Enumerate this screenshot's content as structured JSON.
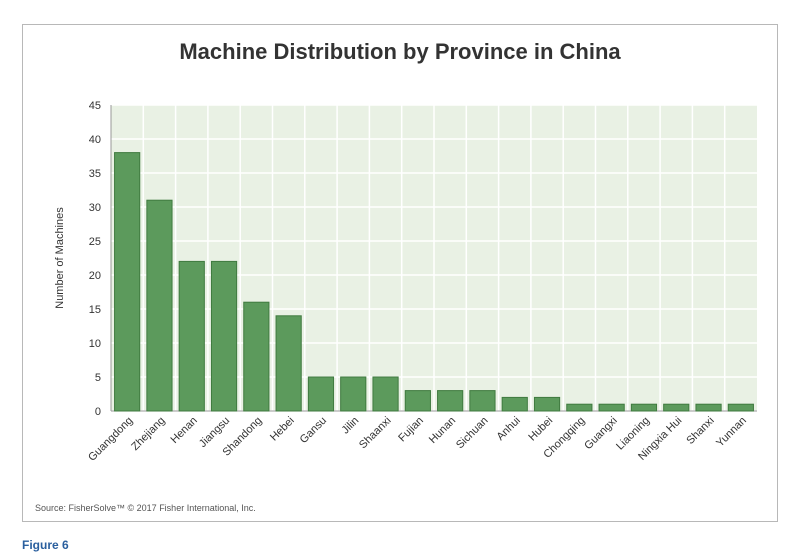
{
  "figure_label": "Figure 6",
  "source": "Source: FisherSolve™ © 2017 Fisher International, Inc.",
  "chart_data": {
    "type": "bar",
    "title": "Machine Distribution by Province in China",
    "xlabel": "",
    "ylabel": "Number of Machines",
    "ylim": [
      0,
      45
    ],
    "yticks": [
      0,
      5,
      10,
      15,
      20,
      25,
      30,
      35,
      40,
      45
    ],
    "grid": true,
    "categories": [
      "Guangdong",
      "Zhejiang",
      "Henan",
      "Jiangsu",
      "Shandong",
      "Hebei",
      "Gansu",
      "Jilin",
      "Shaanxi",
      "Fujian",
      "Hunan",
      "Sichuan",
      "Anhui",
      "Hubei",
      "Chongqing",
      "Guangxi",
      "Liaoning",
      "Ningxia Hui",
      "Shanxi",
      "Yunnan"
    ],
    "values": [
      38,
      31,
      22,
      22,
      16,
      14,
      5,
      5,
      5,
      3,
      3,
      3,
      2,
      2,
      1,
      1,
      1,
      1,
      1,
      1
    ],
    "colors": {
      "bar": "#5c9a5c",
      "bar_stroke": "#3f7a3f",
      "plot_bg": "#e9f1e4",
      "grid": "#ffffff"
    }
  }
}
